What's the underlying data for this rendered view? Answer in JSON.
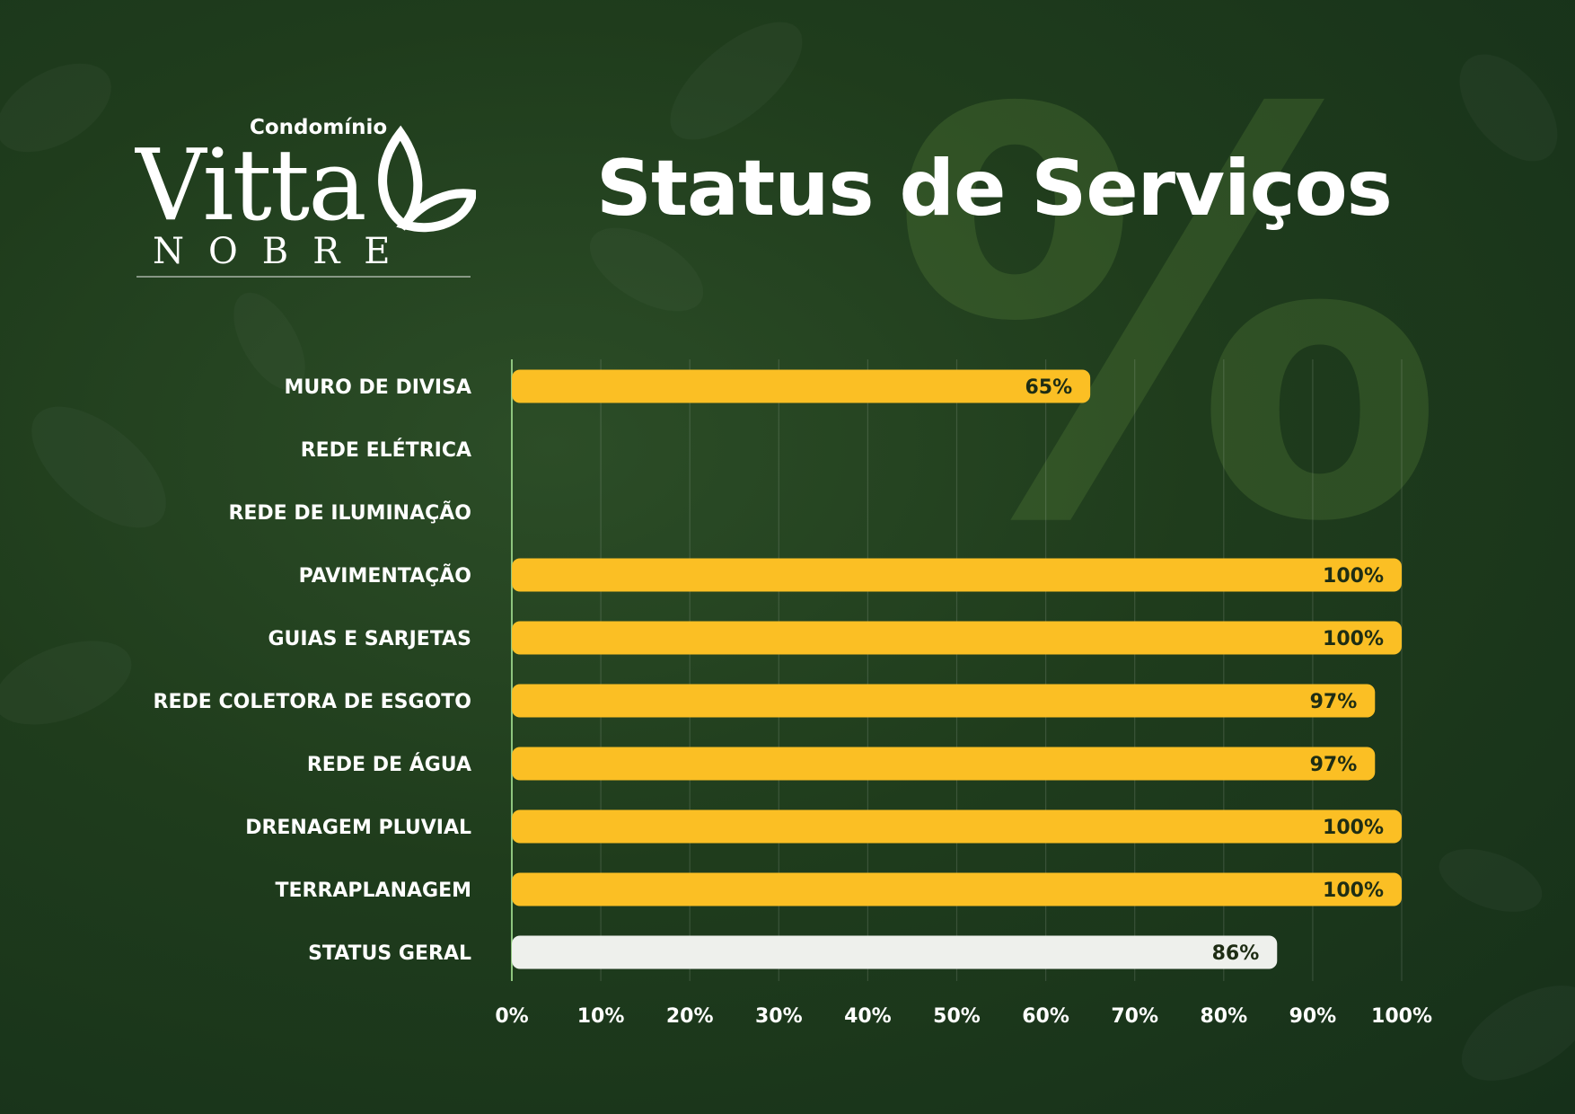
{
  "logo": {
    "prefix": "Condomínio",
    "name": "Vitta",
    "suffix": "NOBRE"
  },
  "title": "Status de Serviços",
  "background_symbol": "%",
  "colors": {
    "bar": "#fbbf24",
    "summary_bar": "#eef0ec",
    "value_text": "#1e2d14",
    "background": "#1f3c1c"
  },
  "chart_data": {
    "type": "bar",
    "orientation": "horizontal",
    "categories": [
      "MURO DE DIVISA",
      "REDE ELÉTRICA",
      "REDE DE ILUMINAÇÃO",
      "PAVIMENTAÇÃO",
      "GUIAS E SARJETAS",
      "REDE COLETORA DE ESGOTO",
      "REDE DE ÁGUA",
      "DRENAGEM PLUVIAL",
      "TERRAPLANAGEM",
      "STATUS GERAL"
    ],
    "values": [
      65,
      0,
      0,
      100,
      100,
      97,
      97,
      100,
      100,
      86
    ],
    "value_labels": [
      "65%",
      "",
      "",
      "100%",
      "100%",
      "97%",
      "97%",
      "100%",
      "100%",
      "86%"
    ],
    "highlight": "STATUS GERAL",
    "xlim": [
      0,
      100
    ],
    "x_ticks": [
      "0%",
      "10%",
      "20%",
      "30%",
      "40%",
      "50%",
      "60%",
      "70%",
      "80%",
      "90%",
      "100%"
    ],
    "grid": true,
    "xlabel": "",
    "ylabel": ""
  }
}
